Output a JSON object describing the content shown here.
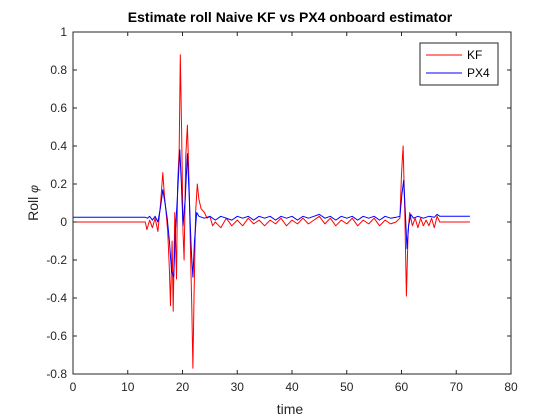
{
  "chart_data": {
    "type": "line",
    "title": "Estimate roll Naive KF vs PX4 onboard estimator",
    "xlabel": "time",
    "ylabel": "Roll",
    "ylabel_symbol": "φ",
    "xlim": [
      0,
      80
    ],
    "ylim": [
      -0.8,
      1
    ],
    "xticks": [
      0,
      10,
      20,
      30,
      40,
      50,
      60,
      70,
      80
    ],
    "yticks": [
      -0.8,
      -0.6,
      -0.4,
      -0.2,
      0,
      0.2,
      0.4,
      0.6,
      0.8,
      1
    ],
    "grid": false,
    "legend_position": "top-right",
    "series": [
      {
        "name": "KF",
        "color": "#ff0000",
        "points": [
          [
            0,
            0.0
          ],
          [
            6,
            0.0
          ],
          [
            12,
            0.0
          ],
          [
            13.2,
            0.0
          ],
          [
            13.5,
            -0.04
          ],
          [
            14,
            0.01
          ],
          [
            14.5,
            -0.03
          ],
          [
            15,
            0.02
          ],
          [
            15.5,
            -0.05
          ],
          [
            16,
            0.1
          ],
          [
            16.4,
            0.26
          ],
          [
            16.7,
            0.14
          ],
          [
            17,
            0.05
          ],
          [
            17.3,
            -0.05
          ],
          [
            17.6,
            -0.25
          ],
          [
            17.8,
            -0.44
          ],
          [
            18.1,
            -0.1
          ],
          [
            18.3,
            -0.47
          ],
          [
            18.6,
            0.05
          ],
          [
            18.9,
            -0.3
          ],
          [
            19.1,
            0.2
          ],
          [
            19.4,
            0.38
          ],
          [
            19.6,
            0.88
          ],
          [
            19.85,
            0.45
          ],
          [
            20.1,
            -0.05
          ],
          [
            20.3,
            -0.2
          ],
          [
            20.6,
            0.35
          ],
          [
            20.9,
            0.51
          ],
          [
            21.2,
            0.2
          ],
          [
            21.5,
            -0.2
          ],
          [
            21.7,
            -0.45
          ],
          [
            21.9,
            -0.77
          ],
          [
            22.1,
            -0.4
          ],
          [
            22.4,
            0.05
          ],
          [
            22.7,
            0.2
          ],
          [
            23,
            0.12
          ],
          [
            23.4,
            0.07
          ],
          [
            24,
            0.05
          ],
          [
            24.5,
            0.02
          ],
          [
            25,
            0.03
          ],
          [
            25.5,
            -0.02
          ],
          [
            26,
            0.0
          ],
          [
            27,
            -0.03
          ],
          [
            28,
            0.02
          ],
          [
            29,
            -0.02
          ],
          [
            30,
            0.01
          ],
          [
            31,
            -0.02
          ],
          [
            32,
            0.02
          ],
          [
            33,
            -0.01
          ],
          [
            34,
            0.01
          ],
          [
            35,
            -0.02
          ],
          [
            36,
            0.01
          ],
          [
            37,
            -0.01
          ],
          [
            38,
            0.02
          ],
          [
            39,
            -0.02
          ],
          [
            40,
            0.01
          ],
          [
            41,
            -0.01
          ],
          [
            42,
            0.02
          ],
          [
            43,
            -0.01
          ],
          [
            44,
            0.01
          ],
          [
            45,
            0.03
          ],
          [
            46,
            -0.01
          ],
          [
            47,
            0.02
          ],
          [
            48,
            -0.02
          ],
          [
            49,
            0.01
          ],
          [
            50,
            -0.01
          ],
          [
            51,
            0.02
          ],
          [
            52,
            -0.02
          ],
          [
            53,
            0.01
          ],
          [
            54,
            -0.01
          ],
          [
            55,
            0.02
          ],
          [
            56,
            -0.02
          ],
          [
            57,
            0.01
          ],
          [
            58,
            -0.01
          ],
          [
            59,
            0.0
          ],
          [
            59.7,
            0.02
          ],
          [
            60.0,
            0.25
          ],
          [
            60.3,
            0.4
          ],
          [
            60.6,
            0.05
          ],
          [
            60.9,
            -0.39
          ],
          [
            61.2,
            -0.05
          ],
          [
            61.5,
            0.05
          ],
          [
            62,
            -0.02
          ],
          [
            62.5,
            0.02
          ],
          [
            63,
            -0.03
          ],
          [
            63.5,
            0.02
          ],
          [
            64,
            -0.02
          ],
          [
            64.5,
            0.01
          ],
          [
            65,
            -0.02
          ],
          [
            65.5,
            0.02
          ],
          [
            66,
            -0.03
          ],
          [
            66.5,
            0.03
          ],
          [
            67,
            0.0
          ],
          [
            68,
            0.0
          ],
          [
            70,
            0.0
          ],
          [
            72.5,
            0.0
          ]
        ]
      },
      {
        "name": "PX4",
        "color": "#0000ff",
        "points": [
          [
            0,
            0.025
          ],
          [
            6,
            0.025
          ],
          [
            12,
            0.025
          ],
          [
            13.2,
            0.025
          ],
          [
            13.6,
            0.02
          ],
          [
            14,
            0.03
          ],
          [
            14.5,
            0.01
          ],
          [
            15,
            0.03
          ],
          [
            15.5,
            0.0
          ],
          [
            16,
            0.08
          ],
          [
            16.4,
            0.17
          ],
          [
            16.8,
            0.1
          ],
          [
            17.2,
            0.02
          ],
          [
            17.6,
            -0.1
          ],
          [
            18,
            -0.26
          ],
          [
            18.4,
            -0.29
          ],
          [
            18.7,
            -0.05
          ],
          [
            19.1,
            0.15
          ],
          [
            19.5,
            0.38
          ],
          [
            19.8,
            0.2
          ],
          [
            20.1,
            -0.02
          ],
          [
            20.5,
            0.12
          ],
          [
            20.9,
            0.36
          ],
          [
            21.2,
            0.15
          ],
          [
            21.6,
            -0.15
          ],
          [
            21.9,
            -0.29
          ],
          [
            22.2,
            -0.1
          ],
          [
            22.6,
            0.05
          ],
          [
            23,
            0.03
          ],
          [
            24,
            0.02
          ],
          [
            25,
            0.03
          ],
          [
            26,
            0.01
          ],
          [
            27,
            0.03
          ],
          [
            28,
            0.02
          ],
          [
            29,
            0.01
          ],
          [
            30,
            0.03
          ],
          [
            31,
            0.02
          ],
          [
            32,
            0.03
          ],
          [
            33,
            0.01
          ],
          [
            34,
            0.03
          ],
          [
            35,
            0.02
          ],
          [
            36,
            0.03
          ],
          [
            37,
            0.01
          ],
          [
            38,
            0.03
          ],
          [
            39,
            0.02
          ],
          [
            40,
            0.03
          ],
          [
            41,
            0.01
          ],
          [
            42,
            0.03
          ],
          [
            43,
            0.02
          ],
          [
            44,
            0.03
          ],
          [
            45,
            0.04
          ],
          [
            46,
            0.02
          ],
          [
            47,
            0.03
          ],
          [
            48,
            0.01
          ],
          [
            49,
            0.03
          ],
          [
            50,
            0.02
          ],
          [
            51,
            0.03
          ],
          [
            52,
            0.01
          ],
          [
            53,
            0.03
          ],
          [
            54,
            0.02
          ],
          [
            55,
            0.03
          ],
          [
            56,
            0.01
          ],
          [
            57,
            0.03
          ],
          [
            58,
            0.02
          ],
          [
            59,
            0.025
          ],
          [
            59.7,
            0.03
          ],
          [
            60.1,
            0.15
          ],
          [
            60.4,
            0.22
          ],
          [
            60.7,
            0.05
          ],
          [
            61.0,
            -0.14
          ],
          [
            61.3,
            -0.02
          ],
          [
            61.7,
            0.04
          ],
          [
            62.2,
            0.02
          ],
          [
            63,
            0.03
          ],
          [
            64,
            0.02
          ],
          [
            65,
            0.03
          ],
          [
            66,
            0.025
          ],
          [
            66.5,
            0.04
          ],
          [
            67,
            0.03
          ],
          [
            70,
            0.03
          ],
          [
            72.5,
            0.03
          ]
        ]
      }
    ]
  }
}
